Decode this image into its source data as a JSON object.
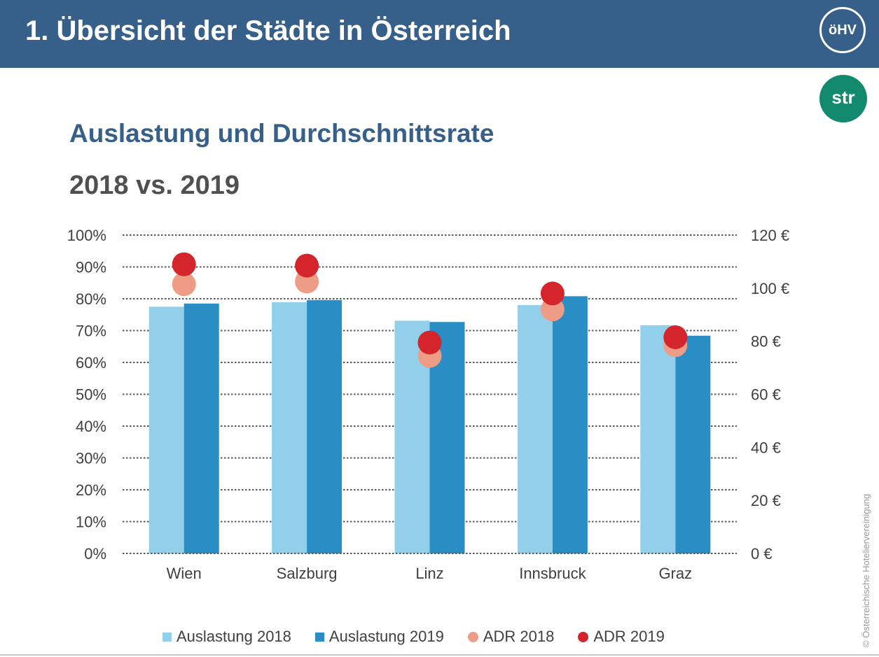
{
  "header": {
    "title": "1. Übersicht der Städte in Österreich",
    "logo_text": "öHV",
    "brand_color": "#365f89"
  },
  "str_logo_text": "str",
  "str_logo_color": "#138a6d",
  "copyright": "© Österreichische Hoteliervereinigung",
  "chart_data": {
    "type": "bar",
    "title": "Auslastung und Durchschnittsrate",
    "subtitle": "2018 vs. 2019",
    "categories": [
      "Wien",
      "Salzburg",
      "Linz",
      "Innsbruck",
      "Graz"
    ],
    "y_left": {
      "ticks": [
        0,
        10,
        20,
        30,
        40,
        50,
        60,
        70,
        80,
        90,
        100
      ],
      "tick_labels": [
        "0%",
        "10%",
        "20%",
        "30%",
        "40%",
        "50%",
        "60%",
        "70%",
        "80%",
        "90%",
        "100%"
      ],
      "range": [
        0,
        100
      ]
    },
    "y_right": {
      "ticks": [
        0,
        20,
        40,
        60,
        80,
        100,
        120
      ],
      "tick_labels": [
        "0 €",
        "20 €",
        "40 €",
        "60 €",
        "80 €",
        "100 €",
        "120 €"
      ],
      "range": [
        0,
        120
      ]
    },
    "grid": true,
    "legend_position": "bottom",
    "series": [
      {
        "name": "Auslastung 2018",
        "kind": "bar",
        "axis": "left",
        "color": "#91cfea",
        "values": [
          77.5,
          78.9,
          73.1,
          78.0,
          71.7
        ]
      },
      {
        "name": "Auslastung 2019",
        "kind": "bar",
        "axis": "left",
        "color": "#2a8dc4",
        "values": [
          78.5,
          79.6,
          72.7,
          80.8,
          68.4
        ]
      },
      {
        "name": "ADR 2018",
        "kind": "dot",
        "axis": "right",
        "color": "#ef9c87",
        "values": [
          101.5,
          102.5,
          74.5,
          92,
          78.5
        ]
      },
      {
        "name": "ADR 2019",
        "kind": "dot",
        "axis": "right",
        "color": "#d5252c",
        "values": [
          109,
          108.5,
          79.5,
          98,
          81.5
        ]
      }
    ]
  }
}
